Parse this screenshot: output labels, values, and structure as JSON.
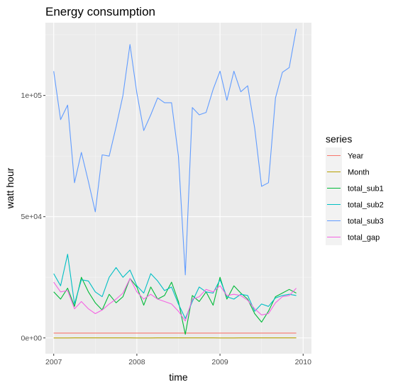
{
  "chart_data": {
    "type": "line",
    "title": "Energy consumption",
    "xlabel": "time",
    "ylabel": "watt hour",
    "xlim": [
      2006.9,
      2010.1
    ],
    "ylim": [
      -6500,
      130000
    ],
    "x_ticks": [
      2007,
      2008,
      2009,
      2010
    ],
    "x_tick_labels": [
      "2007",
      "2008",
      "2009",
      "2010"
    ],
    "y_ticks": [
      0,
      50000,
      100000
    ],
    "y_tick_labels": [
      "0e+00",
      "5e+04",
      "1e+05"
    ],
    "grid": true,
    "legend": {
      "title": "series",
      "placement": "right"
    },
    "x": [
      2007.0,
      2007.083,
      2007.167,
      2007.25,
      2007.333,
      2007.417,
      2007.5,
      2007.583,
      2007.667,
      2007.75,
      2007.833,
      2007.917,
      2008.0,
      2008.083,
      2008.167,
      2008.25,
      2008.333,
      2008.417,
      2008.5,
      2008.583,
      2008.667,
      2008.75,
      2008.833,
      2008.917,
      2009.0,
      2009.083,
      2009.167,
      2009.25,
      2009.333,
      2009.417,
      2009.5,
      2009.583,
      2009.667,
      2009.75,
      2009.833,
      2009.917
    ],
    "series": [
      {
        "name": "Year",
        "color": "#F8766D",
        "values": [
          2007,
          2007,
          2007,
          2007,
          2007,
          2007,
          2007,
          2007,
          2007,
          2007,
          2007,
          2007,
          2008,
          2008,
          2008,
          2008,
          2008,
          2008,
          2008,
          2008,
          2008,
          2008,
          2008,
          2008,
          2009,
          2009,
          2009,
          2009,
          2009,
          2009,
          2009,
          2009,
          2009,
          2009,
          2009,
          2009
        ]
      },
      {
        "name": "Month",
        "color": "#B79F00",
        "values": [
          1,
          2,
          3,
          4,
          5,
          6,
          7,
          8,
          9,
          10,
          11,
          12,
          1,
          2,
          3,
          4,
          5,
          6,
          7,
          8,
          9,
          10,
          11,
          12,
          1,
          2,
          3,
          4,
          5,
          6,
          7,
          8,
          9,
          10,
          11,
          12
        ]
      },
      {
        "name": "total_sub1",
        "color": "#00BA38",
        "values": [
          19000,
          16000,
          20500,
          13000,
          25000,
          19000,
          14500,
          11500,
          18000,
          14500,
          17000,
          24500,
          21000,
          13500,
          21000,
          16000,
          17500,
          23000,
          15000,
          1500,
          17500,
          15000,
          19000,
          13500,
          25000,
          16000,
          21500,
          18500,
          16000,
          10000,
          6500,
          11000,
          17000,
          18500,
          20000,
          18500
        ]
      },
      {
        "name": "total_sub2",
        "color": "#00BFC4",
        "values": [
          26500,
          21500,
          34500,
          14000,
          24000,
          23500,
          19000,
          17000,
          25000,
          29000,
          25000,
          28000,
          21500,
          18500,
          26500,
          23500,
          19500,
          21000,
          14000,
          8000,
          15000,
          21000,
          19000,
          18500,
          24000,
          17000,
          16000,
          18000,
          17500,
          11000,
          14000,
          13000,
          16500,
          17500,
          18000,
          17500
        ]
      },
      {
        "name": "total_sub3",
        "color": "#619CFF",
        "values": [
          110000,
          90000,
          96000,
          64000,
          76500,
          64500,
          52000,
          75500,
          75000,
          87000,
          100000,
          121000,
          101000,
          85500,
          92000,
          99000,
          97000,
          97000,
          75000,
          26000,
          95000,
          92000,
          93000,
          102500,
          110000,
          98000,
          110000,
          101500,
          104000,
          86500,
          62500,
          64000,
          99000,
          109500,
          111500,
          127500
        ]
      },
      {
        "name": "total_gap",
        "color": "#F564E3",
        "values": [
          23000,
          19000,
          19500,
          12000,
          15000,
          12000,
          10000,
          11500,
          14000,
          16000,
          18500,
          24500,
          19000,
          16000,
          18000,
          16000,
          15000,
          14000,
          11000,
          7000,
          16000,
          17000,
          20000,
          19000,
          21500,
          17500,
          18000,
          17500,
          15500,
          12000,
          9500,
          10000,
          14500,
          17000,
          17500,
          20500
        ]
      }
    ]
  }
}
